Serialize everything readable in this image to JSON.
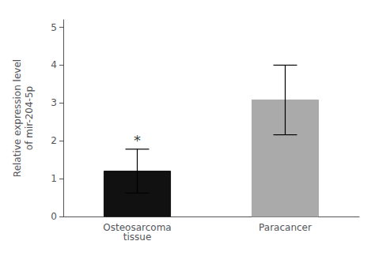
{
  "chart_data": {
    "type": "bar",
    "ylabel": "Relative expression level\nof mir-204-5p",
    "categories": [
      "Osteosarcoma\ntissue",
      "Paracancer"
    ],
    "values": [
      1.2,
      3.08
    ],
    "errors": [
      0.58,
      0.92
    ],
    "colors": [
      "#111111",
      "#aaaaaa"
    ],
    "ylim": [
      0,
      5.2
    ],
    "yticks": [
      0,
      1,
      2,
      3,
      4,
      5
    ],
    "grid": false,
    "annotations": [
      {
        "text": "*",
        "x": "Osteosarcoma\ntissue",
        "y": 1.82
      }
    ]
  }
}
